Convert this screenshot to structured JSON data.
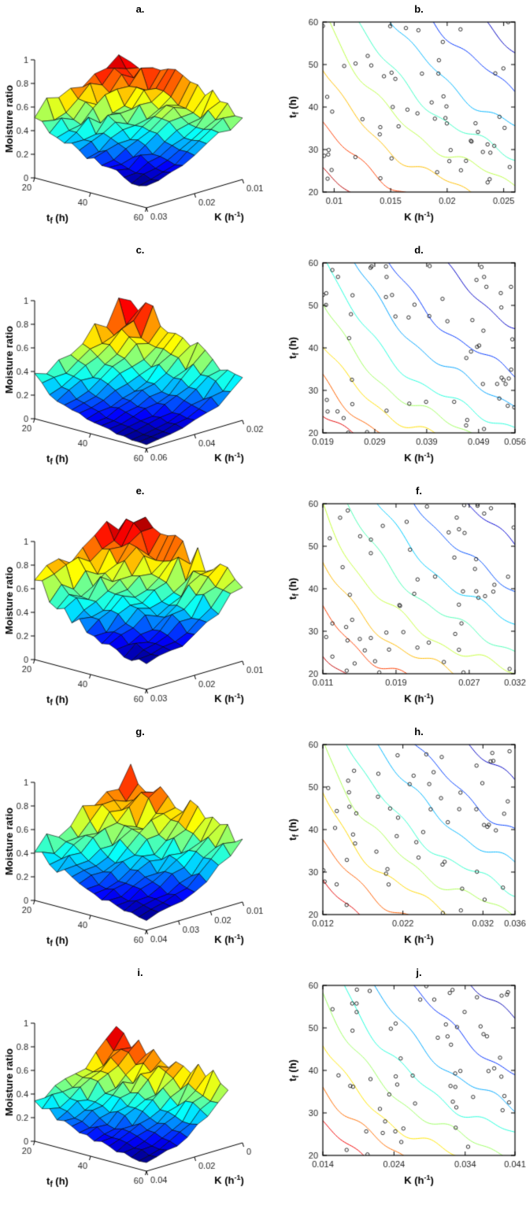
{
  "page": {
    "background": "#ffffff",
    "colormap": "jet",
    "axis_color": "#000000",
    "tick_color": "#262626"
  },
  "chart_data": [
    {
      "id": "a",
      "type": "surface3d",
      "title": "a.",
      "xlabel": "t_f (h)",
      "ylabel": "K (h^-1)",
      "zlabel": "Moisture ratio",
      "t_range": [
        20,
        60
      ],
      "t_ticks": [
        20,
        40,
        60
      ],
      "k_range": [
        0.01,
        0.03
      ],
      "k_ticks": [
        0.01,
        0.02,
        0.03
      ],
      "k_tick_labels": [
        "0.01",
        "0.02",
        "0.03"
      ],
      "z_range": [
        0,
        1
      ],
      "z_ticks": [
        0,
        0.2,
        0.4,
        0.6,
        0.8,
        1
      ],
      "peak_moisture_ratio": 0.82,
      "amp": 1.0,
      "seed": 101
    },
    {
      "id": "b",
      "type": "contour",
      "title": "b.",
      "xlabel": "K (h^-1)",
      "ylabel": "t_f (h)",
      "k_range": [
        0.009,
        0.026
      ],
      "k_ticks": [
        0.01,
        0.015,
        0.02,
        0.025
      ],
      "k_tick_labels": [
        "0.01",
        "0.015",
        "0.02",
        "0.025"
      ],
      "t_range": [
        20,
        60
      ],
      "t_ticks": [
        20,
        30,
        40,
        50,
        60
      ],
      "levels": [
        0.25,
        0.32,
        0.4,
        0.48,
        0.56,
        0.64,
        0.72,
        0.8
      ],
      "n_points": 60,
      "marker": "open-circle",
      "marker_color": "#000000",
      "seed": 201
    },
    {
      "id": "c",
      "type": "surface3d",
      "title": "c.",
      "xlabel": "t_f (h)",
      "ylabel": "K (h^-1)",
      "zlabel": "Moisture ratio",
      "t_range": [
        20,
        60
      ],
      "t_ticks": [
        20,
        40,
        60
      ],
      "k_range": [
        0.02,
        0.06
      ],
      "k_ticks": [
        0.02,
        0.04,
        0.06
      ],
      "k_tick_labels": [
        "0.02",
        "0.04",
        "0.06"
      ],
      "z_range": [
        0,
        1
      ],
      "z_ticks": [
        0,
        0.2,
        0.4,
        0.6,
        0.8,
        1
      ],
      "peak_moisture_ratio": 0.8,
      "amp": 1.2,
      "seed": 103
    },
    {
      "id": "d",
      "type": "contour",
      "title": "d.",
      "xlabel": "K (h^-1)",
      "ylabel": "t_f (h)",
      "k_range": [
        0.019,
        0.056
      ],
      "k_ticks": [
        0.019,
        0.029,
        0.039,
        0.049,
        0.056
      ],
      "k_tick_labels": [
        "0.019",
        "0.029",
        "0.039",
        "0.049",
        "0.056"
      ],
      "t_range": [
        20,
        60
      ],
      "t_ticks": [
        20,
        30,
        40,
        50,
        60
      ],
      "levels": [
        0.08,
        0.15,
        0.22,
        0.3,
        0.38,
        0.46,
        0.54,
        0.62
      ],
      "n_points": 60,
      "marker": "open-circle",
      "marker_color": "#000000",
      "seed": 203
    },
    {
      "id": "e",
      "type": "surface3d",
      "title": "e.",
      "xlabel": "t_f (h)",
      "ylabel": "K (h^-1)",
      "zlabel": "Moisture ratio",
      "t_range": [
        20,
        60
      ],
      "t_ticks": [
        20,
        40,
        60
      ],
      "k_range": [
        0.01,
        0.03
      ],
      "k_ticks": [
        0.01,
        0.02,
        0.03
      ],
      "k_tick_labels": [
        "0.01",
        "0.02",
        "0.03"
      ],
      "z_range": [
        0,
        1
      ],
      "z_ticks": [
        0,
        0.2,
        0.4,
        0.6,
        0.8,
        1
      ],
      "peak_moisture_ratio": 0.98,
      "amp": 1.2,
      "seed": 105
    },
    {
      "id": "f",
      "type": "contour",
      "title": "f.",
      "xlabel": "K (h^-1)",
      "ylabel": "t_f (h)",
      "k_range": [
        0.011,
        0.032
      ],
      "k_ticks": [
        0.011,
        0.019,
        0.027,
        0.032
      ],
      "k_tick_labels": [
        "0.011",
        "0.019",
        "0.027",
        "0.032"
      ],
      "t_range": [
        20,
        60
      ],
      "t_ticks": [
        20,
        30,
        40,
        50,
        60
      ],
      "levels": [
        0.2,
        0.28,
        0.36,
        0.44,
        0.52,
        0.6,
        0.68,
        0.76
      ],
      "n_points": 62,
      "marker": "open-circle",
      "marker_color": "#000000",
      "seed": 205
    },
    {
      "id": "g",
      "type": "surface3d",
      "title": "g.",
      "xlabel": "t_f (h)",
      "ylabel": "K (h^-1)",
      "zlabel": "Moisture ratio",
      "t_range": [
        20,
        60
      ],
      "t_ticks": [
        20,
        40,
        60
      ],
      "k_range": [
        0.01,
        0.04
      ],
      "k_ticks": [
        0.01,
        0.02,
        0.03,
        0.04
      ],
      "k_tick_labels": [
        "0.01",
        "0.02",
        "0.03",
        "0.04"
      ],
      "z_range": [
        0,
        1
      ],
      "z_ticks": [
        0,
        0.2,
        0.4,
        0.6,
        0.8,
        1
      ],
      "peak_moisture_ratio": 0.82,
      "amp": 1.0,
      "seed": 107
    },
    {
      "id": "h",
      "type": "contour",
      "title": "h.",
      "xlabel": "K (h^-1)",
      "ylabel": "t_f (h)",
      "k_range": [
        0.012,
        0.036
      ],
      "k_ticks": [
        0.012,
        0.022,
        0.032,
        0.036
      ],
      "k_tick_labels": [
        "0.012",
        "0.022",
        "0.032",
        "0.036"
      ],
      "t_range": [
        20,
        60
      ],
      "t_ticks": [
        20,
        30,
        40,
        50,
        60
      ],
      "levels": [
        0.16,
        0.24,
        0.32,
        0.4,
        0.48,
        0.56,
        0.64,
        0.72
      ],
      "n_points": 60,
      "marker": "open-circle",
      "marker_color": "#000000",
      "seed": 207
    },
    {
      "id": "i",
      "type": "surface3d",
      "title": "i.",
      "xlabel": "t_f (h)",
      "ylabel": "K (h^-1)",
      "zlabel": "Moisture ratio",
      "t_range": [
        20,
        60
      ],
      "t_ticks": [
        20,
        40,
        60
      ],
      "k_range": [
        0,
        0.04
      ],
      "k_data_range": [
        0.006,
        0.04
      ],
      "k_ticks": [
        0,
        0.02,
        0.04
      ],
      "k_tick_labels": [
        "0",
        "0.02",
        "0.04"
      ],
      "z_range": [
        0,
        1
      ],
      "z_ticks": [
        0,
        0.2,
        0.4,
        0.6,
        0.8,
        1
      ],
      "peak_moisture_ratio": 0.7,
      "amp": 0.78,
      "seed": 109
    },
    {
      "id": "j",
      "type": "contour",
      "title": "j.",
      "xlabel": "K (h^-1)",
      "ylabel": "t_f (h)",
      "k_range": [
        0.014,
        0.041
      ],
      "k_ticks": [
        0.014,
        0.024,
        0.034,
        0.041
      ],
      "k_tick_labels": [
        "0.014",
        "0.024",
        "0.034",
        "0.041"
      ],
      "t_range": [
        20,
        60
      ],
      "t_ticks": [
        20,
        30,
        40,
        50,
        60
      ],
      "levels": [
        0.12,
        0.2,
        0.28,
        0.36,
        0.44,
        0.52,
        0.6,
        0.68
      ],
      "n_points": 62,
      "marker": "open-circle",
      "marker_color": "#000000",
      "seed": 209
    }
  ]
}
